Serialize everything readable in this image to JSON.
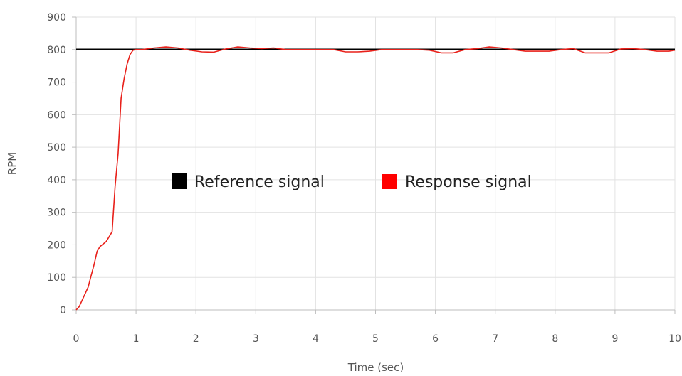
{
  "chart_data": {
    "type": "line",
    "xlabel": "Time (sec)",
    "ylabel": "RPM",
    "xlim": [
      0,
      10
    ],
    "ylim": [
      0,
      900
    ],
    "x_ticks": [
      0,
      1,
      2,
      3,
      4,
      5,
      6,
      7,
      8,
      9,
      10
    ],
    "y_ticks": [
      0,
      100,
      200,
      300,
      400,
      500,
      600,
      700,
      800,
      900
    ],
    "grid": true,
    "legend_position": "center",
    "series": [
      {
        "name": "Reference signal",
        "color": "#000000",
        "x": [
          0,
          10
        ],
        "y": [
          800,
          800
        ]
      },
      {
        "name": "Response signal",
        "color": "#e8201a",
        "x": [
          0,
          0.05,
          0.1,
          0.2,
          0.3,
          0.35,
          0.4,
          0.5,
          0.6,
          0.65,
          0.7,
          0.75,
          0.8,
          0.85,
          0.9,
          0.95,
          1.0,
          1.1,
          1.3,
          1.5,
          1.7,
          1.9,
          2.1,
          2.3,
          2.5,
          2.7,
          2.9,
          3.1,
          3.3,
          3.5,
          3.7,
          3.9,
          4.1,
          4.3,
          4.5,
          4.7,
          4.9,
          5.1,
          5.3,
          5.5,
          5.7,
          5.9,
          6.1,
          6.3,
          6.5,
          6.7,
          6.9,
          7.1,
          7.3,
          7.5,
          7.7,
          7.9,
          8.1,
          8.3,
          8.5,
          8.7,
          8.9,
          9.1,
          9.3,
          9.5,
          9.7,
          9.9,
          10.0
        ],
        "y": [
          0,
          10,
          30,
          70,
          140,
          180,
          195,
          210,
          240,
          380,
          480,
          650,
          710,
          755,
          785,
          798,
          800,
          800,
          805,
          808,
          805,
          798,
          793,
          792,
          802,
          808,
          805,
          803,
          805,
          800,
          800,
          800,
          800,
          800,
          793,
          793,
          795,
          800,
          800,
          800,
          800,
          798,
          790,
          790,
          800,
          803,
          808,
          805,
          800,
          795,
          795,
          795,
          800,
          803,
          790,
          790,
          790,
          802,
          803,
          800,
          795,
          795,
          798
        ]
      }
    ]
  }
}
